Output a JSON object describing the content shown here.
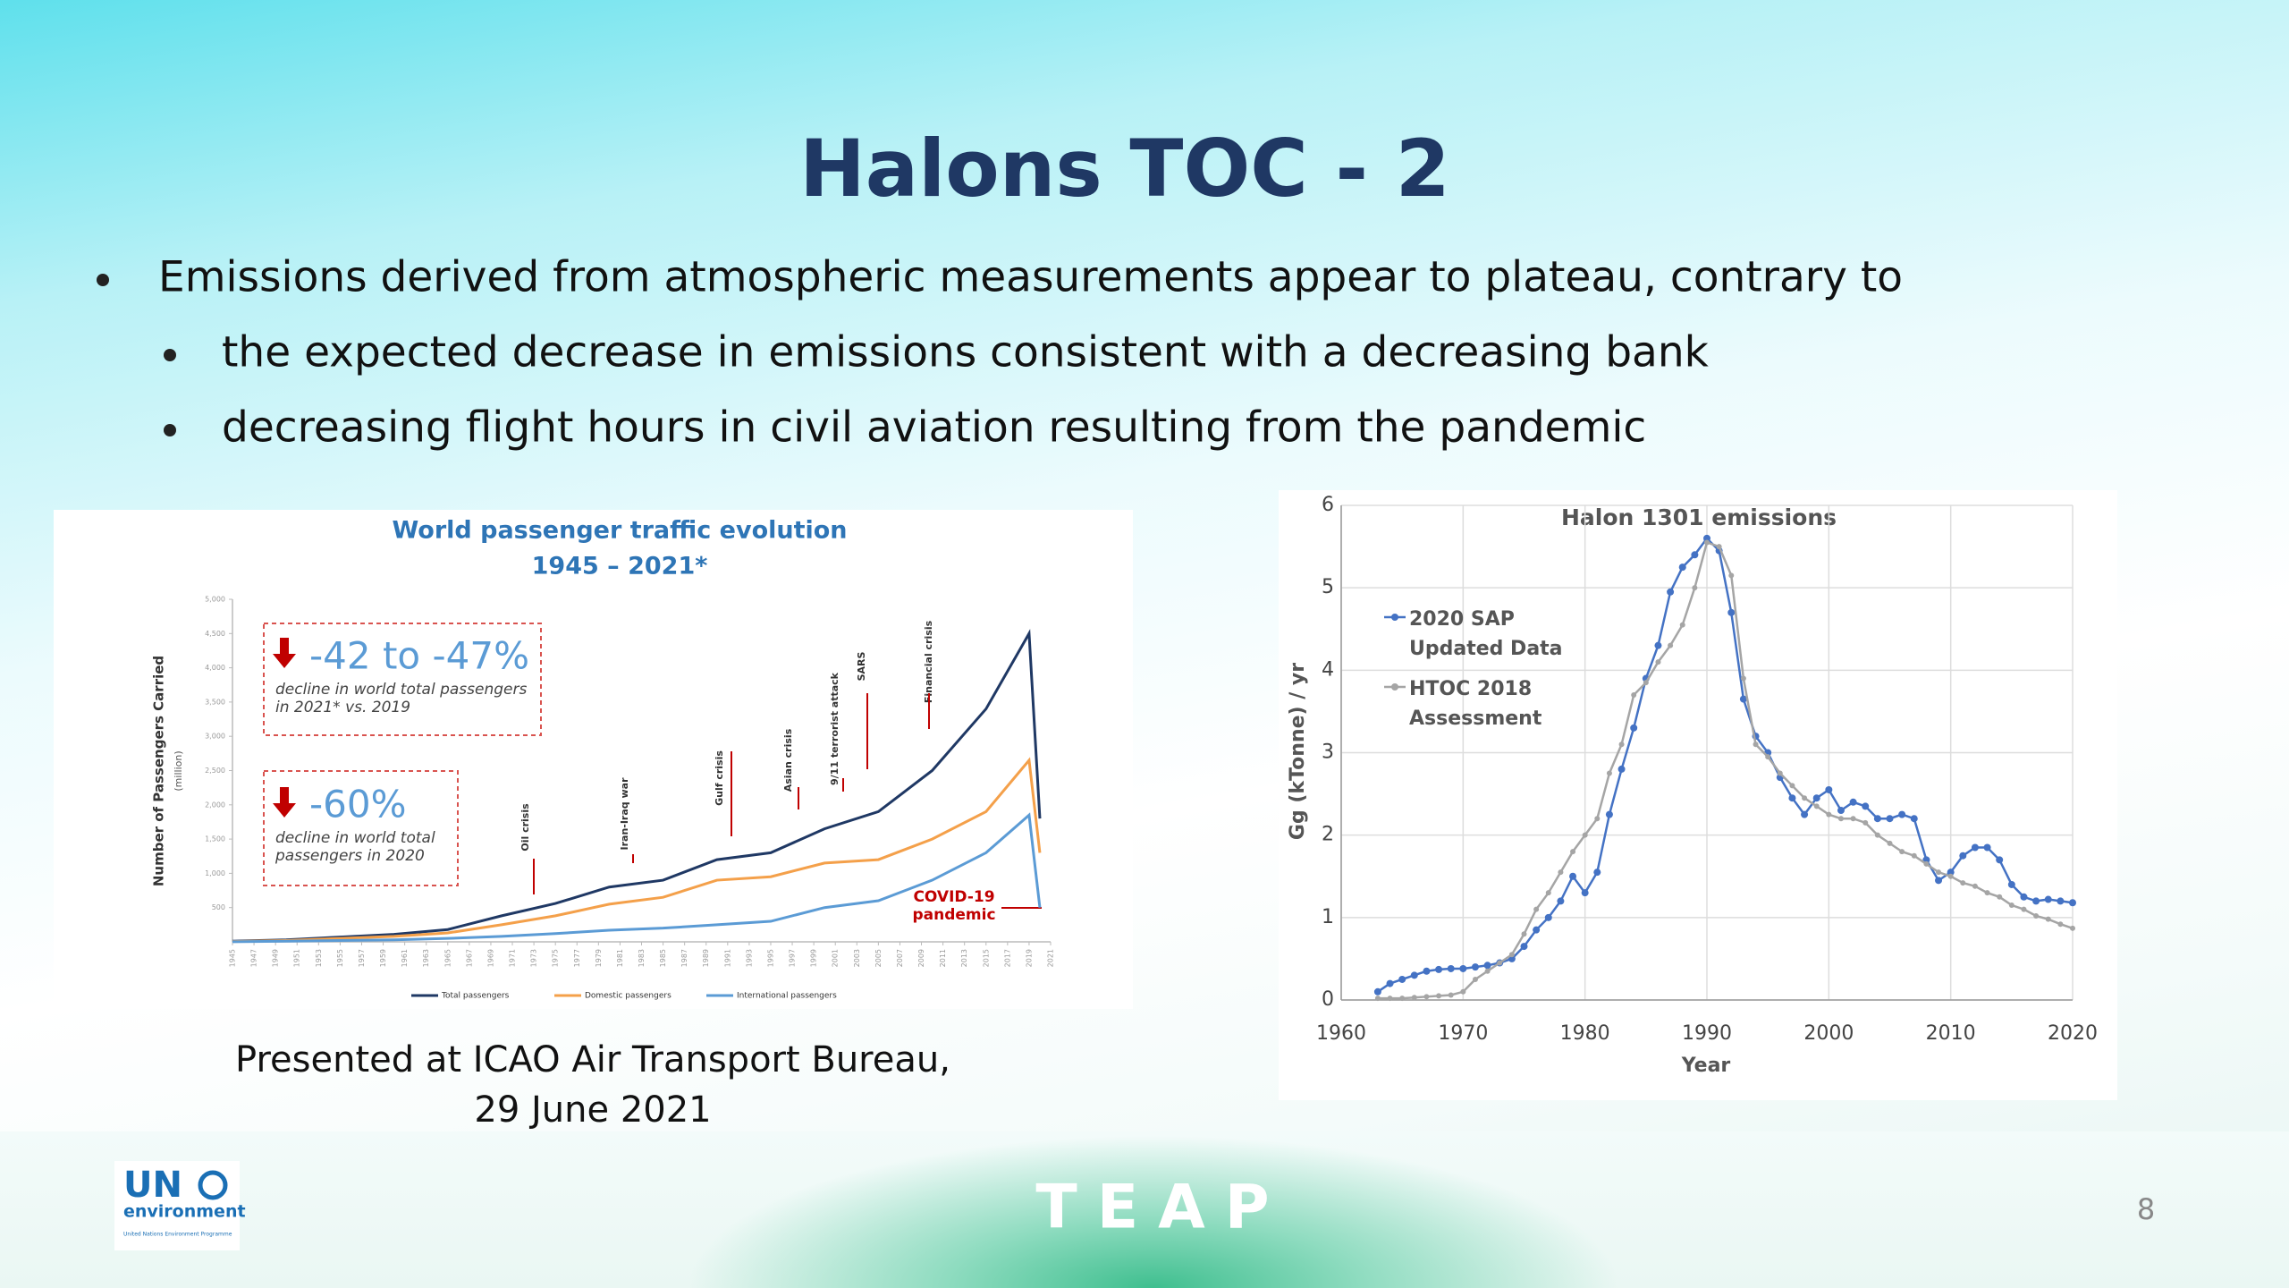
{
  "slide": {
    "title": "Halons TOC - 2",
    "bullets": [
      "Emissions derived from atmospheric measurements appear to plateau, contrary to",
      "the expected decrease in emissions consistent with a decreasing bank",
      "decreasing flight hours in civil aviation resulting from the pandemic"
    ],
    "caption": [
      "Presented at ICAO Air Transport Bureau,",
      "29 June 2021"
    ],
    "footer": "TEAP",
    "page_number": "8",
    "logo": {
      "name": "UN",
      "sub": "environment",
      "org": "United Nations Environment Programme"
    }
  },
  "chart_data": [
    {
      "type": "line",
      "title": [
        "World passenger traffic evolution",
        "1945 – 2021*"
      ],
      "y_label": "Number of Passengers Carried",
      "y_unit": "(million)",
      "x": [
        1945,
        1950,
        1955,
        1960,
        1965,
        1970,
        1975,
        1980,
        1985,
        1990,
        1995,
        2000,
        2005,
        2010,
        2015,
        2019,
        2020
      ],
      "series": [
        {
          "name": "Total passengers",
          "color": "#1f3864",
          "values": [
            10,
            30,
            70,
            110,
            180,
            380,
            560,
            800,
            900,
            1200,
            1300,
            1650,
            1900,
            2500,
            3400,
            4500,
            1800
          ]
        },
        {
          "name": "Domestic passengers",
          "color": "#f4a04a",
          "values": [
            5,
            20,
            50,
            80,
            130,
            250,
            380,
            550,
            650,
            900,
            950,
            1150,
            1200,
            1500,
            1900,
            2650,
            1300
          ]
        },
        {
          "name": "International passengers",
          "color": "#5b9bd5",
          "values": [
            2,
            10,
            20,
            30,
            50,
            80,
            120,
            170,
            200,
            250,
            300,
            500,
            600,
            900,
            1300,
            1850,
            500
          ]
        }
      ],
      "xlim": [
        1945,
        2021
      ],
      "xticks": [
        1945,
        1947,
        1949,
        1951,
        1953,
        1955,
        1957,
        1959,
        1961,
        1963,
        1965,
        1967,
        1969,
        1971,
        1973,
        1975,
        1977,
        1979,
        1981,
        1983,
        1985,
        1987,
        1989,
        1991,
        1993,
        1995,
        1997,
        1999,
        2001,
        2003,
        2005,
        2007,
        2009,
        2011,
        2013,
        2015,
        2017,
        2019,
        2021
      ],
      "ylim": [
        0,
        5000
      ],
      "yticks": [
        500,
        {
          "value": 1000,
          "label": "1,000"
        },
        {
          "value": 1500,
          "label": "1,500"
        },
        {
          "value": 2000,
          "label": "2,000"
        },
        {
          "value": 2500,
          "label": "2,500"
        },
        {
          "value": 3000,
          "label": "3,000"
        },
        {
          "value": 3500,
          "label": "3,500"
        },
        {
          "value": 4000,
          "label": "4,000"
        },
        {
          "value": 4500,
          "label": "4,500"
        },
        {
          "value": 5000,
          "label": "5,000"
        }
      ],
      "grid": false,
      "annotations": [
        {
          "headline": "-42 to -47%",
          "text": "decline in world total passengers in 2021* vs. 2019"
        },
        {
          "headline": "-60%",
          "text": "decline in world total passengers in 2020"
        }
      ],
      "events": [
        "Oil crisis",
        "Iran-Iraq war",
        "Gulf crisis",
        "Asian crisis",
        "9/11 terrorist attack",
        "SARS",
        "Financial crisis",
        "COVID-19 pandemic"
      ]
    },
    {
      "type": "line",
      "title": "Halon 1301 emissions",
      "x_label": "Year",
      "y_label": "Gg (kTonne) / yr",
      "x": [
        1963,
        1964,
        1965,
        1966,
        1967,
        1968,
        1969,
        1970,
        1971,
        1972,
        1973,
        1974,
        1975,
        1976,
        1977,
        1978,
        1979,
        1980,
        1981,
        1982,
        1983,
        1984,
        1985,
        1986,
        1987,
        1988,
        1989,
        1990,
        1991,
        1992,
        1993,
        1994,
        1995,
        1996,
        1997,
        1998,
        1999,
        2000,
        2001,
        2002,
        2003,
        2004,
        2005,
        2006,
        2007,
        2008,
        2009,
        2010,
        2011,
        2012,
        2013,
        2014,
        2015,
        2016,
        2017,
        2018,
        2019,
        2020
      ],
      "series": [
        {
          "name": "2020 SAP Updated Data",
          "color": "#4472c4",
          "values": [
            0.1,
            0.2,
            0.25,
            0.3,
            0.35,
            0.37,
            0.38,
            0.38,
            0.4,
            0.42,
            0.45,
            0.5,
            0.65,
            0.85,
            1.0,
            1.2,
            1.5,
            1.3,
            1.55,
            2.25,
            2.8,
            3.3,
            3.9,
            4.3,
            4.95,
            5.25,
            5.4,
            5.6,
            5.45,
            4.7,
            3.65,
            3.2,
            3.0,
            2.7,
            2.45,
            2.25,
            2.45,
            2.55,
            2.3,
            2.4,
            2.35,
            2.2,
            2.2,
            2.25,
            2.2,
            1.7,
            1.45,
            1.55,
            1.75,
            1.85,
            1.85,
            1.7,
            1.4,
            1.25,
            1.2,
            1.22,
            1.2,
            1.18
          ]
        },
        {
          "name": "HTOC 2018 Assessment",
          "color": "#a5a5a5",
          "values": [
            0.02,
            0.02,
            0.02,
            0.03,
            0.04,
            0.05,
            0.06,
            0.1,
            0.25,
            0.35,
            0.45,
            0.55,
            0.8,
            1.1,
            1.3,
            1.55,
            1.8,
            2.0,
            2.2,
            2.75,
            3.1,
            3.7,
            3.85,
            4.1,
            4.3,
            4.55,
            5.0,
            5.55,
            5.5,
            5.15,
            3.9,
            3.1,
            2.95,
            2.75,
            2.6,
            2.45,
            2.35,
            2.25,
            2.2,
            2.2,
            2.15,
            2.0,
            1.9,
            1.8,
            1.75,
            1.65,
            1.55,
            1.5,
            1.42,
            1.38,
            1.3,
            1.25,
            1.15,
            1.1,
            1.02,
            0.98,
            0.92,
            0.87
          ]
        }
      ],
      "xlim": [
        1960,
        2020
      ],
      "xticks": [
        1960,
        1970,
        1980,
        1990,
        2000,
        2010,
        2020
      ],
      "ylim": [
        0,
        6
      ],
      "yticks": [
        0,
        1,
        2,
        3,
        4,
        5,
        6
      ],
      "grid": true
    }
  ]
}
